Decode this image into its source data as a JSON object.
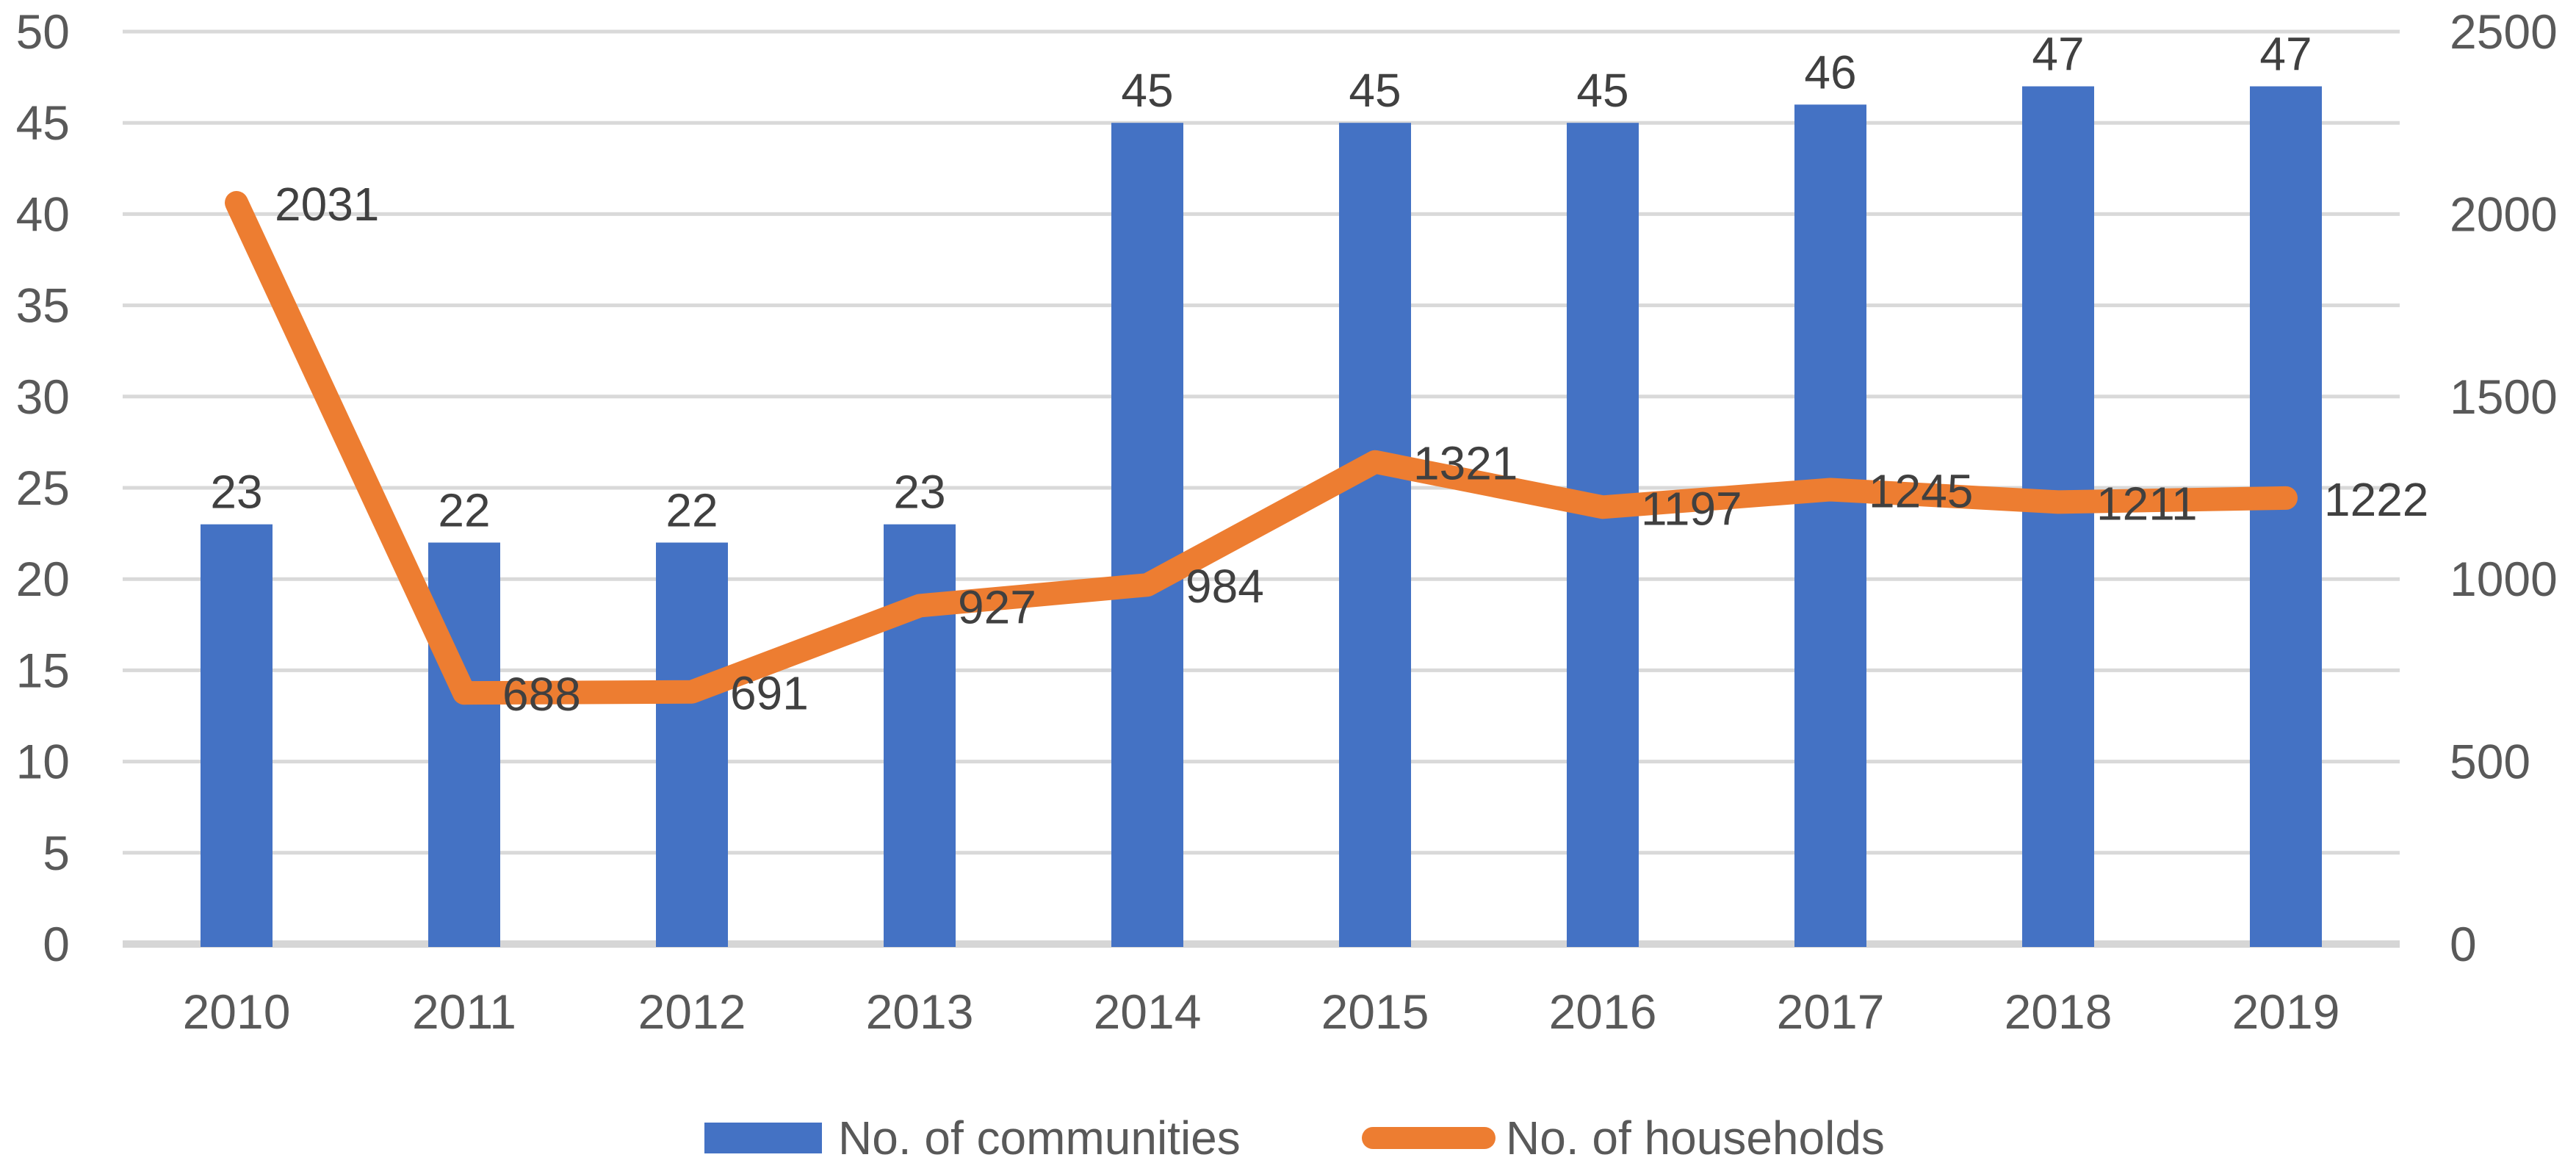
{
  "chart_data": {
    "type": "combo",
    "title": "",
    "categories": [
      "2010",
      "2011",
      "2012",
      "2013",
      "2014",
      "2015",
      "2016",
      "2017",
      "2018",
      "2019"
    ],
    "series": [
      {
        "name": "No. of communities",
        "type": "bar",
        "axis": "left",
        "color": "#4472C4",
        "values": [
          23,
          22,
          22,
          23,
          45,
          45,
          45,
          46,
          47,
          47
        ],
        "data_labels": [
          "23",
          "22",
          "22",
          "23",
          "45",
          "45",
          "45",
          "46",
          "47",
          "47"
        ]
      },
      {
        "name": "No. of households",
        "type": "line",
        "axis": "right",
        "color": "#ED7D31",
        "values": [
          2031,
          688,
          691,
          927,
          984,
          1321,
          1197,
          1245,
          1211,
          1222
        ],
        "data_labels": [
          "2031",
          "688",
          "691",
          "927",
          "984",
          "1321",
          "1197",
          "1245",
          "1211",
          "1222"
        ]
      }
    ],
    "left_axis": {
      "min": 0,
      "max": 50,
      "step": 5,
      "ticks": [
        0,
        5,
        10,
        15,
        20,
        25,
        30,
        35,
        40,
        45,
        50
      ]
    },
    "right_axis": {
      "min": 0,
      "max": 2500,
      "step": 500,
      "ticks": [
        0,
        500,
        1000,
        1500,
        2000,
        2500
      ]
    },
    "grid": true,
    "legend_position": "bottom",
    "theme": {
      "background": "#FFFFFF",
      "gridline_color": "#D9D9D9",
      "axis_line_color": "#D6D6D6",
      "tick_text_color": "#595959",
      "data_label_color": "#404040"
    }
  }
}
